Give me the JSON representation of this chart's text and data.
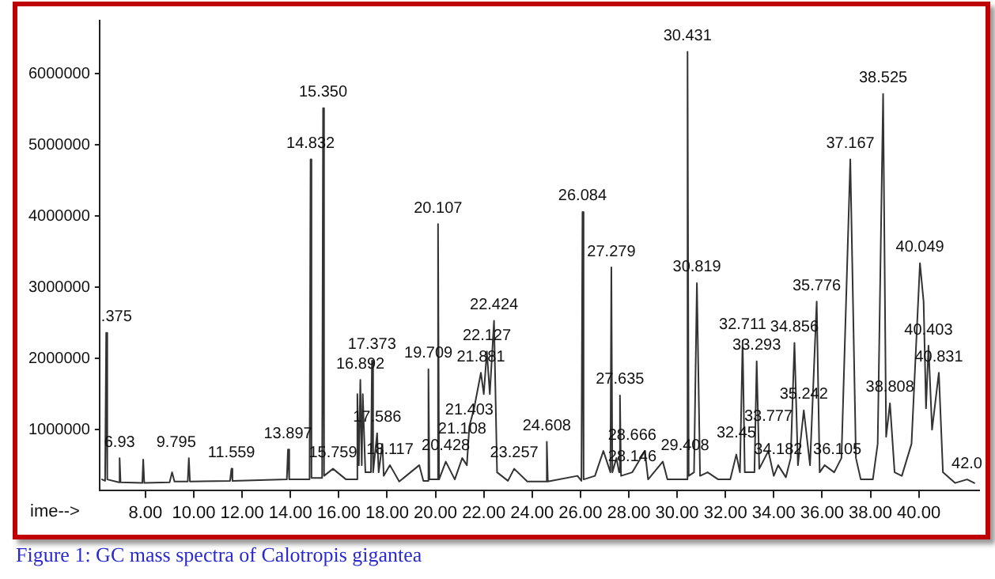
{
  "chart_data": {
    "type": "line",
    "title": "Figure 1: GC mass spectra of Calotropis gigantea",
    "xlabel": "ime-->",
    "xlim": [
      6.1,
      42.5
    ],
    "xticks": [
      {
        "value": 8,
        "label": "8.00"
      },
      {
        "value": 10,
        "label": "10.00"
      },
      {
        "value": 12,
        "label": "12.00"
      },
      {
        "value": 14,
        "label": "14.00"
      },
      {
        "value": 16,
        "label": "16.00"
      },
      {
        "value": 18,
        "label": "18.00"
      },
      {
        "value": 20,
        "label": "20.00"
      },
      {
        "value": 22,
        "label": "22.00"
      },
      {
        "value": 24,
        "label": "24.00"
      },
      {
        "value": 26,
        "label": "26.00"
      },
      {
        "value": 28,
        "label": "28.00"
      },
      {
        "value": 30,
        "label": "30.00"
      },
      {
        "value": 32,
        "label": "32.00"
      },
      {
        "value": 34,
        "label": "34.00"
      },
      {
        "value": 36,
        "label": "36.00"
      },
      {
        "value": 38,
        "label": "38.00"
      },
      {
        "value": 40,
        "label": "40.00"
      }
    ],
    "ylim": [
      150000,
      6750000
    ],
    "yticks": [
      1000000,
      2000000,
      3000000,
      4000000,
      5000000,
      6000000
    ],
    "grid": false,
    "legend": false,
    "marker": "none",
    "line_style": "solid",
    "series": [
      {
        "color": "#333333",
        "x": [
          6.2,
          6.33,
          6.375,
          6.42,
          6.9,
          6.93,
          6.97,
          7.87,
          7.907,
          7.95,
          9.0,
          9.1,
          9.2,
          9.75,
          9.795,
          9.84,
          11.5,
          11.559,
          11.6,
          13.85,
          13.897,
          13.95,
          14.79,
          14.832,
          14.87,
          15.31,
          15.35,
          15.39,
          15.759,
          16.3,
          16.72,
          16.769,
          16.83,
          16.892,
          16.95,
          16.992,
          17.1,
          17.33,
          17.373,
          17.42,
          17.586,
          17.65,
          17.804,
          17.86,
          18.117,
          18.5,
          19.33,
          19.5,
          19.67,
          19.709,
          19.75,
          20.07,
          20.107,
          20.15,
          20.428,
          20.8,
          21.108,
          21.3,
          21.403,
          21.6,
          21.881,
          22.0,
          22.127,
          22.25,
          22.424,
          22.55,
          23.0,
          23.257,
          23.8,
          24.57,
          24.608,
          24.65,
          25.878,
          26.04,
          26.084,
          26.13,
          26.6,
          26.95,
          27.24,
          27.279,
          27.32,
          27.489,
          27.6,
          27.635,
          27.68,
          28.146,
          28.666,
          28.8,
          29.408,
          29.6,
          30.39,
          30.431,
          30.48,
          30.7,
          30.819,
          30.95,
          31.263,
          31.7,
          32.2,
          32.45,
          32.6,
          32.711,
          32.8,
          33.2,
          33.293,
          33.4,
          33.777,
          34.0,
          34.182,
          34.5,
          34.7,
          34.856,
          35.0,
          35.242,
          35.5,
          35.776,
          35.9,
          36.105,
          36.5,
          36.8,
          37.167,
          37.4,
          37.6,
          38.1,
          38.3,
          38.525,
          38.65,
          38.808,
          39.0,
          39.3,
          39.7,
          40.049,
          40.2,
          40.3,
          40.403,
          40.55,
          40.831,
          41.0,
          41.5,
          42.0,
          42.3
        ],
        "values": [
          300000,
          280000,
          2360000,
          300000,
          260000,
          600000,
          260000,
          250000,
          580000,
          250000,
          260000,
          400000,
          270000,
          270000,
          600000,
          270000,
          280000,
          450000,
          280000,
          300000,
          720000,
          300000,
          300000,
          4800000,
          320000,
          320000,
          5520000,
          350000,
          450000,
          300000,
          300000,
          1500000,
          500000,
          1700000,
          500000,
          1500000,
          400000,
          400000,
          1970000,
          400000,
          950000,
          400000,
          800000,
          350000,
          500000,
          270000,
          500000,
          280000,
          280000,
          1850000,
          300000,
          300000,
          3890000,
          300000,
          550000,
          300000,
          600000,
          500000,
          1050000,
          1300000,
          1800000,
          1500000,
          2100000,
          1500000,
          2530000,
          400000,
          280000,
          450000,
          270000,
          270000,
          830000,
          270000,
          350000,
          280000,
          4060000,
          300000,
          350000,
          700000,
          400000,
          3280000,
          400000,
          600000,
          400000,
          1480000,
          350000,
          400000,
          700000,
          300000,
          550000,
          300000,
          300000,
          6310000,
          350000,
          400000,
          3060000,
          350000,
          400000,
          300000,
          300000,
          650000,
          400000,
          2250000,
          400000,
          400000,
          1960000,
          450000,
          700000,
          350000,
          500000,
          330000,
          600000,
          2220000,
          500000,
          1270000,
          500000,
          2800000,
          400000,
          500000,
          400000,
          600000,
          4800000,
          600000,
          300000,
          300000,
          800000,
          5720000,
          900000,
          1370000,
          400000,
          350000,
          800000,
          3340000,
          2800000,
          1300000,
          2180000,
          1000000,
          1800000,
          400000,
          250000,
          300000,
          250000
        ]
      }
    ],
    "annotations": [
      {
        "text": ".375",
        "x": 6.375,
        "y": 2360000
      },
      {
        "text": "6.93",
        "x": 6.93,
        "y": 600000
      },
      {
        "text": "9.795",
        "x": 9.795,
        "y": 600000
      },
      {
        "text": "11.559",
        "x": 11.559,
        "y": 450000
      },
      {
        "text": "13.897",
        "x": 13.897,
        "y": 720000
      },
      {
        "text": "14.832",
        "x": 14.832,
        "y": 4800000
      },
      {
        "text": "15.350",
        "x": 15.35,
        "y": 5520000
      },
      {
        "text": "15.759",
        "x": 15.759,
        "y": 450000
      },
      {
        "text": "16.892",
        "x": 16.892,
        "y": 1700000
      },
      {
        "text": "17.373",
        "x": 17.373,
        "y": 1970000
      },
      {
        "text": "17.586",
        "x": 17.586,
        "y": 950000
      },
      {
        "text": "18.117",
        "x": 18.117,
        "y": 500000
      },
      {
        "text": "19.709",
        "x": 19.709,
        "y": 1850000
      },
      {
        "text": "20.107",
        "x": 20.107,
        "y": 3890000
      },
      {
        "text": "20.428",
        "x": 20.428,
        "y": 550000
      },
      {
        "text": "21.108",
        "x": 21.108,
        "y": 600000
      },
      {
        "text": "21.403",
        "x": 21.403,
        "y": 1050000
      },
      {
        "text": "21.881",
        "x": 21.881,
        "y": 1800000
      },
      {
        "text": "22.127",
        "x": 22.127,
        "y": 2100000
      },
      {
        "text": "22.424",
        "x": 22.424,
        "y": 2530000
      },
      {
        "text": "23.257",
        "x": 23.257,
        "y": 450000
      },
      {
        "text": "24.608",
        "x": 24.608,
        "y": 830000
      },
      {
        "text": "26.084",
        "x": 26.084,
        "y": 4060000
      },
      {
        "text": "27.279",
        "x": 27.279,
        "y": 3280000
      },
      {
        "text": "27.635",
        "x": 27.635,
        "y": 1480000
      },
      {
        "text": "28.146",
        "x": 28.146,
        "y": 400000
      },
      {
        "text": "28.666",
        "x": 28.666,
        "y": 700000
      },
      {
        "text": "29.408",
        "x": 29.408,
        "y": 550000
      },
      {
        "text": "30.431",
        "x": 30.431,
        "y": 6310000
      },
      {
        "text": "30.819",
        "x": 30.819,
        "y": 3060000
      },
      {
        "text": "32.45",
        "x": 32.45,
        "y": 650000
      },
      {
        "text": "32.711",
        "x": 32.711,
        "y": 2250000
      },
      {
        "text": "33.293",
        "x": 33.293,
        "y": 1960000
      },
      {
        "text": "33.777",
        "x": 33.777,
        "y": 700000
      },
      {
        "text": "34.182",
        "x": 34.182,
        "y": 500000
      },
      {
        "text": "34.856",
        "x": 34.856,
        "y": 2220000
      },
      {
        "text": "35.242",
        "x": 35.242,
        "y": 1270000
      },
      {
        "text": "35.776",
        "x": 35.776,
        "y": 2800000
      },
      {
        "text": "36.105",
        "x": 36.105,
        "y": 500000
      },
      {
        "text": "37.167",
        "x": 37.167,
        "y": 4800000
      },
      {
        "text": "38.525",
        "x": 38.525,
        "y": 5720000
      },
      {
        "text": "38.808",
        "x": 38.808,
        "y": 1370000
      },
      {
        "text": "40.049",
        "x": 40.049,
        "y": 3340000
      },
      {
        "text": "40.403",
        "x": 40.403,
        "y": 2180000
      },
      {
        "text": "40.831",
        "x": 40.831,
        "y": 1800000
      },
      {
        "text": "42.0",
        "x": 42.0,
        "y": 300000
      }
    ]
  }
}
